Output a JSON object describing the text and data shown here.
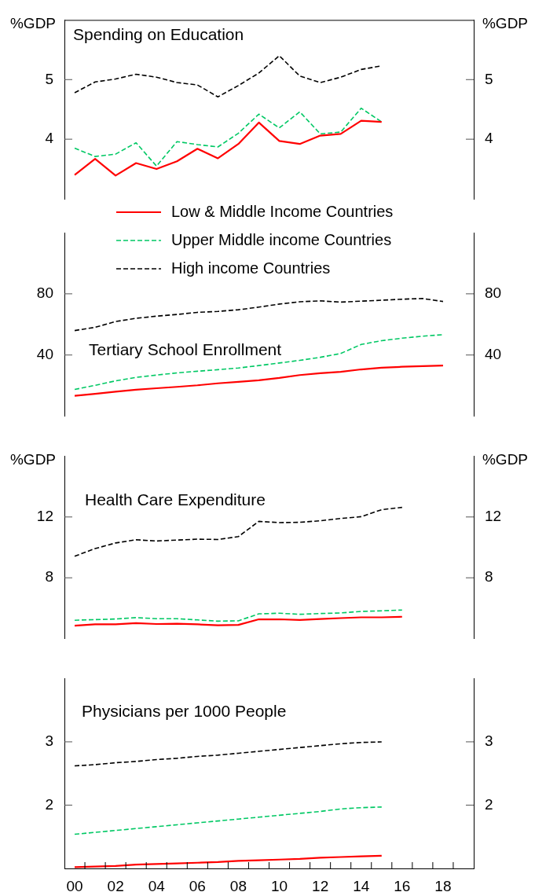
{
  "chart_data": [
    {
      "type": "line",
      "title": "Spending on Education",
      "ylabel": "%GDP",
      "y2label": "%GDP",
      "x": [
        2000,
        2001,
        2002,
        2003,
        2004,
        2005,
        2006,
        2007,
        2008,
        2009,
        2010,
        2011,
        2012,
        2013,
        2014,
        2015
      ],
      "xlim": [
        1999.5,
        2019.5
      ],
      "ylim": [
        3,
        6
      ],
      "yticks": [
        4,
        5
      ],
      "y2lim": [
        3,
        6
      ],
      "y2ticks": [
        4,
        5
      ],
      "tick_labels": "y",
      "series": [
        {
          "color": "#ff0000",
          "line_style": "solid",
          "values": [
            3.4,
            3.67,
            3.39,
            3.6,
            3.5,
            3.63,
            3.84,
            3.68,
            3.92,
            4.28,
            3.97,
            3.92,
            4.06,
            4.09,
            4.31,
            4.29
          ]
        },
        {
          "color": "#00c864",
          "line_style": "dashed",
          "values": [
            3.85,
            3.71,
            3.75,
            3.94,
            3.55,
            3.96,
            3.91,
            3.87,
            4.1,
            4.42,
            4.19,
            4.46,
            4.09,
            4.12,
            4.52,
            4.29
          ]
        },
        {
          "color": "#000000",
          "line_style": "dashed",
          "values": [
            4.78,
            4.96,
            5.01,
            5.09,
            5.04,
            4.95,
            4.91,
            4.71,
            4.9,
            5.11,
            5.4,
            5.06,
            4.95,
            5.04,
            5.17,
            5.23
          ]
        }
      ]
    },
    {
      "type": "line",
      "title": "Tertiary School Enrollment",
      "legend": "top",
      "x": [
        2000,
        2001,
        2002,
        2003,
        2004,
        2005,
        2006,
        2007,
        2008,
        2009,
        2010,
        2011,
        2012,
        2013,
        2014,
        2015,
        2016,
        2017,
        2018
      ],
      "xlim": [
        1999.5,
        2019.5
      ],
      "ylim": [
        0,
        120
      ],
      "yticks": [
        40,
        80
      ],
      "y2lim": [
        0,
        120
      ],
      "y2ticks": [
        40,
        80
      ],
      "tick_labels": "y",
      "series": [
        {
          "name": "Low & Middle Income Countries",
          "color": "#ff0000",
          "line_style": "solid",
          "values": [
            13.3,
            14.6,
            16.0,
            17.3,
            18.3,
            19.2,
            20.2,
            21.5,
            22.5,
            23.5,
            25.0,
            26.9,
            28.1,
            29.0,
            30.6,
            31.7,
            32.3,
            32.7,
            33.1
          ]
        },
        {
          "name": "Upper Middle income Countries",
          "color": "#00c864",
          "line_style": "dashed",
          "values": [
            17.5,
            20.2,
            23.1,
            25.4,
            26.9,
            28.3,
            29.4,
            30.4,
            31.5,
            33.1,
            34.8,
            36.5,
            38.5,
            41.0,
            46.9,
            49.4,
            51.0,
            52.3,
            53.3
          ]
        },
        {
          "name": "High income Countries",
          "color": "#000000",
          "line_style": "dashed",
          "values": [
            56.0,
            58.1,
            61.9,
            64.0,
            65.4,
            66.5,
            67.9,
            68.5,
            69.6,
            71.3,
            73.3,
            74.8,
            75.4,
            74.6,
            75.2,
            75.8,
            76.5,
            76.9,
            75.0
          ]
        }
      ]
    },
    {
      "type": "line",
      "title": "Health Care Expenditure",
      "ylabel": "%GDP",
      "y2label": "%GDP",
      "x": [
        2000,
        2001,
        2002,
        2003,
        2004,
        2005,
        2006,
        2007,
        2008,
        2009,
        2010,
        2011,
        2012,
        2013,
        2014,
        2015,
        2016
      ],
      "xlim": [
        1999.5,
        2019.5
      ],
      "ylim": [
        4,
        16
      ],
      "yticks": [
        8,
        12
      ],
      "y2lim": [
        4,
        16
      ],
      "y2ticks": [
        8,
        12
      ],
      "tick_labels": "y",
      "series": [
        {
          "color": "#ff0000",
          "line_style": "solid",
          "values": [
            4.85,
            4.94,
            4.94,
            5.02,
            4.96,
            4.98,
            4.94,
            4.88,
            4.9,
            5.27,
            5.27,
            5.23,
            5.29,
            5.35,
            5.4,
            5.4,
            5.44
          ]
        },
        {
          "color": "#00c864",
          "line_style": "dashed",
          "values": [
            5.21,
            5.25,
            5.29,
            5.38,
            5.31,
            5.31,
            5.23,
            5.15,
            5.17,
            5.63,
            5.67,
            5.6,
            5.65,
            5.69,
            5.79,
            5.83,
            5.88
          ]
        },
        {
          "color": "#000000",
          "line_style": "dashed",
          "values": [
            9.42,
            9.92,
            10.29,
            10.5,
            10.42,
            10.48,
            10.54,
            10.52,
            10.71,
            11.71,
            11.63,
            11.65,
            11.75,
            11.9,
            12.02,
            12.48,
            12.63
          ]
        }
      ]
    },
    {
      "type": "line",
      "title": "Physicians per 1000 People",
      "x": [
        2000,
        2001,
        2002,
        2003,
        2004,
        2005,
        2006,
        2007,
        2008,
        2009,
        2010,
        2011,
        2012,
        2013,
        2014,
        2015
      ],
      "xlim": [
        1999.5,
        2019.5
      ],
      "xticks": [
        {
          "value": 2000,
          "label": "00"
        },
        {
          "value": 2002,
          "label": "02"
        },
        {
          "value": 2004,
          "label": "04"
        },
        {
          "value": 2006,
          "label": "06"
        },
        {
          "value": 2008,
          "label": "08"
        },
        {
          "value": 2010,
          "label": "10"
        },
        {
          "value": 2012,
          "label": "12"
        },
        {
          "value": 2014,
          "label": "14"
        },
        {
          "value": 2016,
          "label": "16"
        },
        {
          "value": 2018,
          "label": "18"
        },
        {
          "value": 2000.5,
          "label": null
        },
        {
          "value": 2001.5,
          "label": null
        },
        {
          "value": 2002.5,
          "label": null
        },
        {
          "value": 2003.5,
          "label": null
        },
        {
          "value": 2004.5,
          "label": null
        },
        {
          "value": 2005.5,
          "label": null
        },
        {
          "value": 2006.5,
          "label": null
        },
        {
          "value": 2007.5,
          "label": null
        },
        {
          "value": 2008.5,
          "label": null
        },
        {
          "value": 2009.5,
          "label": null
        },
        {
          "value": 2010.5,
          "label": null
        },
        {
          "value": 2011.5,
          "label": null
        },
        {
          "value": 2012.5,
          "label": null
        },
        {
          "value": 2013.5,
          "label": null
        },
        {
          "value": 2014.5,
          "label": null
        },
        {
          "value": 2015.5,
          "label": null
        },
        {
          "value": 2016.5,
          "label": null
        },
        {
          "value": 2017.5,
          "label": null
        },
        {
          "value": 2018.5,
          "label": null
        }
      ],
      "ylim": [
        1,
        4
      ],
      "yticks": [
        2,
        3
      ],
      "y2lim": [
        1,
        4
      ],
      "y2ticks": [
        2,
        3
      ],
      "series": [
        {
          "color": "#ff0000",
          "line_style": "solid",
          "values": [
            1.02,
            1.03,
            1.04,
            1.06,
            1.07,
            1.08,
            1.09,
            1.1,
            1.12,
            1.13,
            1.14,
            1.15,
            1.17,
            1.18,
            1.19,
            1.2
          ]
        },
        {
          "color": "#00c864",
          "line_style": "dashed",
          "values": [
            1.54,
            1.57,
            1.6,
            1.63,
            1.66,
            1.69,
            1.72,
            1.75,
            1.78,
            1.81,
            1.84,
            1.87,
            1.9,
            1.94,
            1.96,
            1.97
          ]
        },
        {
          "color": "#000000",
          "line_style": "dashed",
          "values": [
            2.62,
            2.64,
            2.67,
            2.69,
            2.72,
            2.74,
            2.77,
            2.79,
            2.82,
            2.85,
            2.88,
            2.91,
            2.94,
            2.97,
            2.99,
            3.0
          ]
        }
      ]
    }
  ]
}
